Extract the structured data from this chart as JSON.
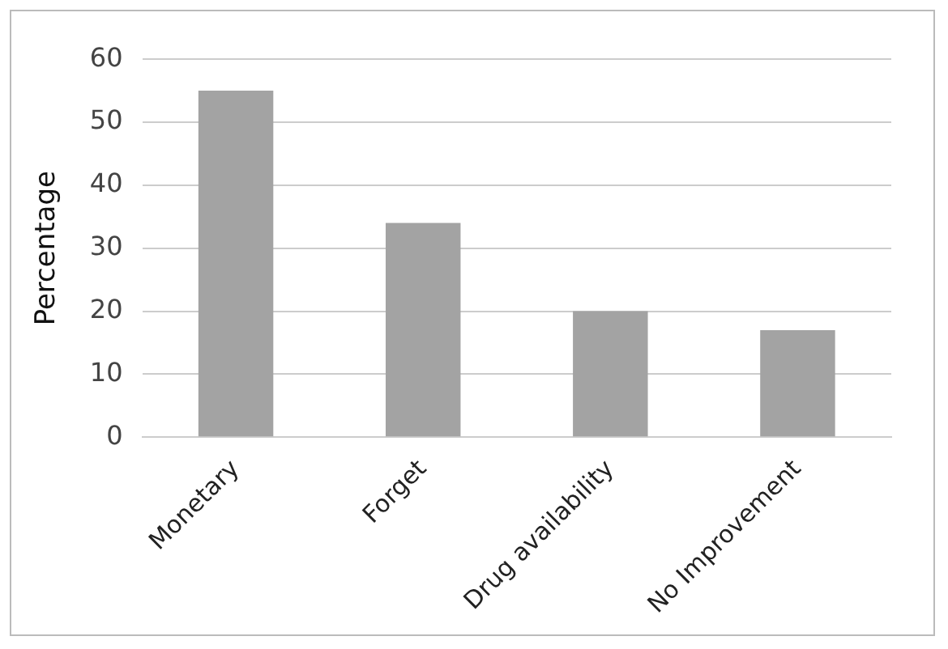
{
  "chart_data": {
    "type": "bar",
    "ylabel": "Percentage",
    "categories": [
      "Monetary",
      "Forget",
      "Drug availability",
      "No Improvement"
    ],
    "values": [
      55,
      34,
      20,
      17
    ],
    "color": "#a3a3a3",
    "ylim": [
      0,
      60
    ],
    "yticks": [
      0,
      10,
      20,
      30,
      40,
      50,
      60
    ],
    "grid": "y",
    "legend": false
  }
}
